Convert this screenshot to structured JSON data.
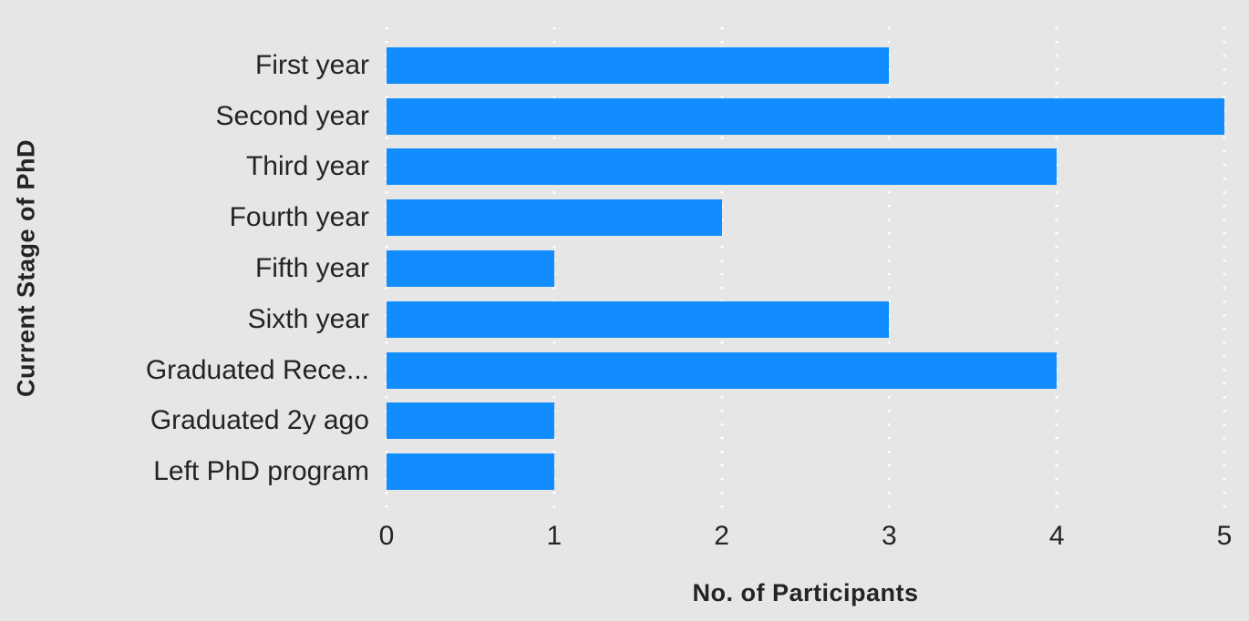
{
  "chart_data": {
    "type": "bar",
    "orientation": "horizontal",
    "categories": [
      "First year",
      "Second year",
      "Third year",
      "Fourth year",
      "Fifth year",
      "Sixth year",
      "Graduated Rece...",
      "Graduated 2y ago",
      "Left PhD program"
    ],
    "values": [
      3,
      5,
      4,
      2,
      1,
      3,
      4,
      1,
      1
    ],
    "xlabel": "No. of Participants",
    "ylabel": "Current Stage of PhD",
    "xlim": [
      0,
      5
    ],
    "xticks": [
      "0",
      "1",
      "2",
      "3",
      "4",
      "5"
    ],
    "legend": "none",
    "grid": "vertical-dotted-white",
    "colors": {
      "bar": "#118DFF",
      "background": "#E6E6E6",
      "text": "#252423",
      "gridline": "#FFFFFF"
    }
  }
}
